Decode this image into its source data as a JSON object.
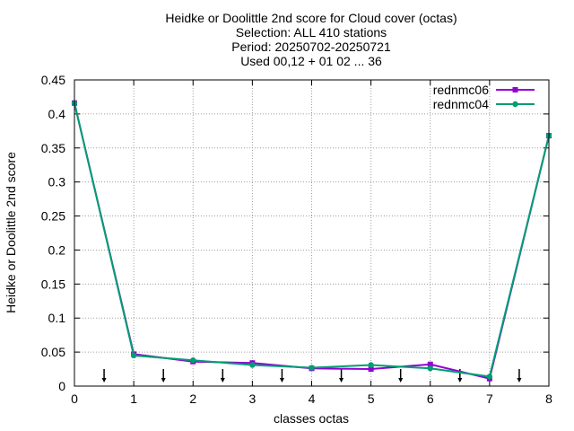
{
  "chart_data": {
    "type": "line",
    "title_lines": [
      "Heidke or Doolittle 2nd score  for Cloud cover (octas)",
      "Selection: ALL    410 stations",
      "Period: 20250702-20250721",
      "Used 00,12 + 01 02 ... 36"
    ],
    "xlabel": "classes octas",
    "ylabel": "Heidke or Doolittle 2nd score",
    "xlim": [
      0,
      8
    ],
    "ylim": [
      0,
      0.45
    ],
    "xticks": [
      0,
      1,
      2,
      3,
      4,
      5,
      6,
      7,
      8
    ],
    "xtick_labels": [
      "0",
      "1",
      "2",
      "3",
      "4",
      "5",
      "6",
      "7",
      "8"
    ],
    "yticks": [
      0,
      0.05,
      0.1,
      0.15,
      0.2,
      0.25,
      0.3,
      0.35,
      0.4,
      0.45
    ],
    "ytick_labels": [
      "0",
      "0.05",
      "0.1",
      "0.15",
      "0.2",
      "0.25",
      "0.3",
      "0.35",
      "0.4",
      "0.45"
    ],
    "grid": true,
    "legend_position": "top-right",
    "x": [
      0,
      1,
      2,
      3,
      4,
      5,
      6,
      7,
      8
    ],
    "series": [
      {
        "name": "rednmc06",
        "color": "#9400d3",
        "marker": "square",
        "values": [
          0.416,
          0.047,
          0.036,
          0.034,
          0.026,
          0.025,
          0.032,
          0.011,
          0.368
        ]
      },
      {
        "name": "rednmc04",
        "color": "#009e73",
        "marker": "circle",
        "values": [
          0.416,
          0.045,
          0.038,
          0.031,
          0.027,
          0.031,
          0.026,
          0.014,
          0.368
        ]
      }
    ],
    "arrows_x": [
      0.5,
      1.5,
      2.5,
      3.5,
      4.5,
      5.5,
      6.5,
      7.5
    ]
  }
}
